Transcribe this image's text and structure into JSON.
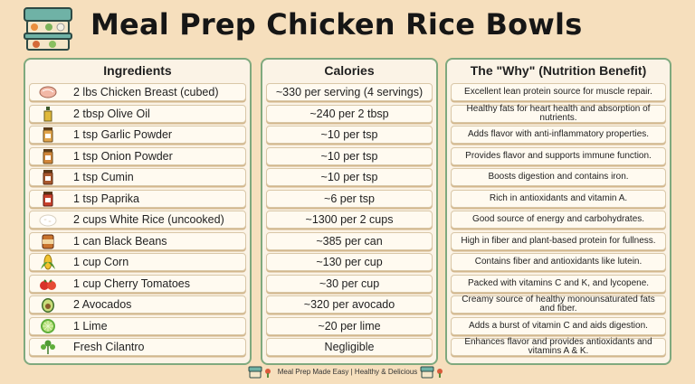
{
  "header": {
    "title": "Meal Prep Chicken Rice Bowls",
    "logo_icon": "meal-prep-containers-icon"
  },
  "columns": {
    "ingredients_title": "Ingredients",
    "calories_title": "Calories",
    "why_title": "The \"Why\" (Nutrition Benefit)"
  },
  "rows": [
    {
      "icon": "chicken-breast-icon",
      "ingredient": "2 lbs Chicken Breast (cubed)",
      "calories": "~330 per serving (4 servings)",
      "benefit": "Excellent lean protein source for muscle repair."
    },
    {
      "icon": "olive-oil-icon",
      "ingredient": "2 tbsp Olive Oil",
      "calories": "~240 per 2 tbsp",
      "benefit": "Healthy fats for heart health and absorption of nutrients."
    },
    {
      "icon": "garlic-powder-jar-icon",
      "ingredient": "1 tsp Garlic Powder",
      "calories": "~10 per tsp",
      "benefit": "Adds flavor with anti-inflammatory properties."
    },
    {
      "icon": "onion-powder-jar-icon",
      "ingredient": "1 tsp Onion Powder",
      "calories": "~10 per tsp",
      "benefit": "Provides flavor and supports immune function."
    },
    {
      "icon": "cumin-jar-icon",
      "ingredient": "1 tsp Cumin",
      "calories": "~10 per tsp",
      "benefit": "Boosts digestion and contains iron."
    },
    {
      "icon": "paprika-jar-icon",
      "ingredient": "1 tsp Paprika",
      "calories": "~6 per tsp",
      "benefit": "Rich in antioxidants and vitamin A."
    },
    {
      "icon": "white-rice-icon",
      "ingredient": "2 cups White Rice (uncooked)",
      "calories": "~1300 per 2 cups",
      "benefit": "Good source of energy and carbohydrates."
    },
    {
      "icon": "black-beans-can-icon",
      "ingredient": "1 can Black Beans",
      "calories": "~385 per can",
      "benefit": "High in fiber and plant-based protein for fullness."
    },
    {
      "icon": "corn-icon",
      "ingredient": "1 cup Corn",
      "calories": "~130 per cup",
      "benefit": "Contains fiber and antioxidants like lutein."
    },
    {
      "icon": "cherry-tomatoes-icon",
      "ingredient": "1 cup Cherry Tomatoes",
      "calories": "~30 per cup",
      "benefit": "Packed with vitamins C and K, and lycopene."
    },
    {
      "icon": "avocado-icon",
      "ingredient": "2 Avocados",
      "calories": "~320 per avocado",
      "benefit": "Creamy source of healthy monounsaturated fats and fiber."
    },
    {
      "icon": "lime-icon",
      "ingredient": "1 Lime",
      "calories": "~20 per lime",
      "benefit": "Adds a burst of vitamin C and aids digestion."
    },
    {
      "icon": "cilantro-icon",
      "ingredient": "Fresh Cilantro",
      "calories": "Negligible",
      "benefit": "Enhances flavor and provides antioxidants and vitamins A & K."
    }
  ],
  "footer": {
    "text": "Meal Prep Made Easy | Healthy & Delicious",
    "left_icon": "meal-prep-containers-icon",
    "right_icon": "meal-prep-containers-icon"
  },
  "colors": {
    "background": "#f6dfbd",
    "panel_border": "#7fa97e",
    "row_fill": "#fffaf0"
  }
}
